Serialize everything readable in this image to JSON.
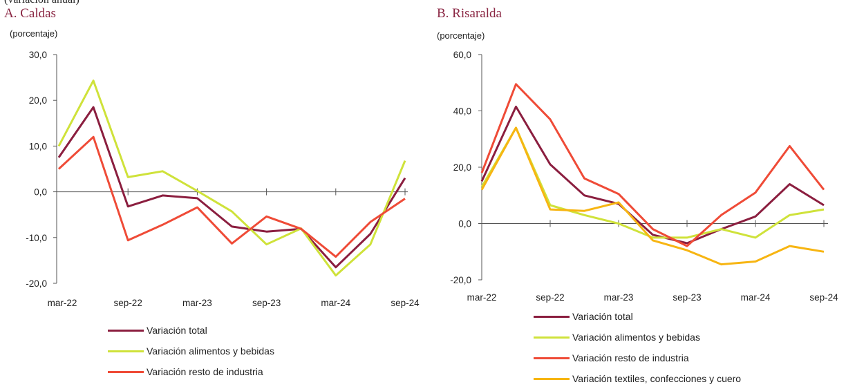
{
  "header": {
    "cut_text": "(variación anual)"
  },
  "chart_data": [
    {
      "type": "line",
      "title": "A. Caldas",
      "ylabel": "(porcentaje)",
      "ylim": [
        -20,
        30
      ],
      "yticks": [
        -20,
        -10,
        0,
        10,
        20,
        30
      ],
      "ytick_labels": [
        "-20,0",
        "-10,0",
        "0,0",
        "10,0",
        "20,0",
        "30,0"
      ],
      "x": [
        "mar-22",
        "jun-22",
        "sep-22",
        "dic-22",
        "mar-23",
        "jun-23",
        "sep-23",
        "dic-23",
        "mar-24",
        "jun-24",
        "sep-24"
      ],
      "xtick_labels": [
        "mar-22",
        "sep-22",
        "mar-23",
        "sep-23",
        "mar-24",
        "sep-24"
      ],
      "series": [
        {
          "name": "Variación total",
          "color": "#8b1e3f",
          "values": [
            7.5,
            18.5,
            -3.2,
            -0.8,
            -1.4,
            -7.6,
            -8.7,
            -8.1,
            -16.5,
            -9.2,
            3.0
          ]
        },
        {
          "name": "Variación alimentos y bebidas",
          "color": "#cfe23a",
          "values": [
            10.0,
            24.3,
            3.2,
            4.5,
            0.2,
            -4.3,
            -11.5,
            -8.0,
            -18.3,
            -11.5,
            6.8
          ]
        },
        {
          "name": "Variación resto de industria",
          "color": "#ef4b37",
          "values": [
            5.0,
            12.0,
            -10.6,
            -7.2,
            -3.4,
            -11.3,
            -5.4,
            -8.1,
            -14.2,
            -6.6,
            -1.5
          ]
        }
      ]
    },
    {
      "type": "line",
      "title": "B. Risaralda",
      "ylabel": "(porcentaje)",
      "ylim": [
        -20,
        60
      ],
      "yticks": [
        -20,
        0,
        20,
        40,
        60
      ],
      "ytick_labels": [
        "-20,0",
        "0,0",
        "20,0",
        "40,0",
        "60,0"
      ],
      "x": [
        "mar-22",
        "jun-22",
        "sep-22",
        "dic-22",
        "mar-23",
        "jun-23",
        "sep-23",
        "dic-23",
        "mar-24",
        "jun-24",
        "sep-24"
      ],
      "xtick_labels": [
        "mar-22",
        "sep-22",
        "mar-23",
        "sep-23",
        "mar-24",
        "sep-24"
      ],
      "series": [
        {
          "name": "Variación total",
          "color": "#8b1e3f",
          "values": [
            15.0,
            41.5,
            21.0,
            10.0,
            7.0,
            -4.0,
            -7.0,
            -2.0,
            2.5,
            14.0,
            6.5
          ]
        },
        {
          "name": "Variación alimentos y bebidas",
          "color": "#cfe23a",
          "values": [
            13.0,
            34.0,
            6.5,
            3.0,
            0.0,
            -5.0,
            -5.0,
            -2.0,
            -5.0,
            3.0,
            5.0
          ]
        },
        {
          "name": "Variación resto de industria",
          "color": "#ef4b37",
          "values": [
            18.0,
            49.5,
            37.0,
            16.0,
            10.5,
            -2.0,
            -8.0,
            3.0,
            11.0,
            27.5,
            12.0
          ]
        },
        {
          "name": "Variación textiles, confecciones y cuero",
          "color": "#f7b512",
          "values": [
            12.0,
            34.0,
            5.0,
            4.5,
            7.5,
            -6.0,
            -9.5,
            -14.5,
            -13.5,
            -8.0,
            -10.0
          ]
        }
      ]
    }
  ]
}
